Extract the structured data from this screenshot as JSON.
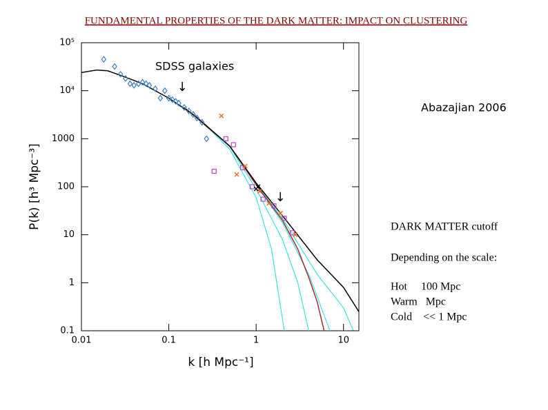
{
  "chart_data": {
    "type": "scatter",
    "title": "FUNDAMENTAL PROPERTIES OF THE DARK MATTER: IMPACT ON CLUSTERING",
    "x_label": "k [h Mpc⁻¹]",
    "y_label": "P(k) [h³ Mpc⁻³]",
    "x_log": true,
    "y_log": true,
    "xlim": [
      0.01,
      15
    ],
    "ylim": [
      0.1,
      100000
    ],
    "xticks": [
      0.01,
      0.1,
      1,
      10
    ],
    "yticks": [
      0.1,
      1,
      10,
      100,
      1000,
      {
        "value": 10000,
        "label": "10⁴"
      },
      {
        "value": 100000,
        "label": "10⁵"
      }
    ],
    "annotations": [
      "SDSS galaxies",
      "Abazajian 2006",
      "DARK MATTER cutoff",
      "Depending on the scale:",
      "Hot     100 Mpc",
      "Warm   Mpc",
      "Cold    << 1 Mpc"
    ],
    "series": [
      {
        "mode": "line",
        "color": "#40e0e0",
        "x": [
          0.15,
          0.3,
          0.5,
          1,
          1.5,
          2.1
        ],
        "values": [
          4500,
          1500,
          600,
          60,
          5,
          0.1
        ]
      },
      {
        "mode": "line",
        "color": "#40e0e0",
        "x": [
          0.15,
          0.5,
          1,
          2,
          3,
          4
        ],
        "values": [
          4500,
          680,
          90,
          8,
          1,
          0.1
        ]
      },
      {
        "mode": "line",
        "color": "#40e0e0",
        "x": [
          0.15,
          0.5,
          1,
          2,
          4,
          7
        ],
        "values": [
          4500,
          700,
          110,
          18,
          1.5,
          0.1
        ]
      },
      {
        "mode": "line",
        "color": "#40e0e0",
        "x": [
          0.15,
          0.5,
          1,
          2,
          5,
          10,
          13
        ],
        "values": [
          4500,
          700,
          115,
          22,
          1.5,
          0.3,
          0.1
        ]
      },
      {
        "mode": "line",
        "color": "#a03030",
        "x": [
          0.15,
          0.5,
          1,
          2,
          3,
          4,
          5,
          6
        ],
        "values": [
          4500,
          700,
          110,
          20,
          5,
          1.3,
          0.4,
          0.1
        ]
      },
      {
        "mode": "line",
        "color": "#000000",
        "x": [
          0.01,
          0.015,
          0.02,
          0.03,
          0.05,
          0.1,
          0.2,
          0.5,
          1,
          2,
          5,
          10,
          15
        ],
        "values": [
          24000,
          27000,
          26000,
          20000,
          14000,
          7000,
          3000,
          700,
          120,
          25,
          3,
          0.8,
          0.25
        ]
      },
      {
        "mode": "markers",
        "marker": "diamond",
        "color": "#3a7fc0",
        "x": [
          0.018,
          0.024,
          0.028,
          0.032,
          0.036,
          0.04,
          0.045,
          0.05,
          0.055,
          0.06,
          0.07,
          0.08,
          0.09,
          0.1,
          0.11,
          0.12,
          0.13,
          0.15,
          0.17,
          0.19,
          0.21,
          0.24,
          0.27
        ],
        "values": [
          45000,
          32000,
          22000,
          18000,
          14000,
          13000,
          14000,
          15000,
          14000,
          13000,
          11000,
          7000,
          10000,
          7000,
          6500,
          6000,
          5500,
          4500,
          3800,
          3200,
          2700,
          2200,
          1000
        ]
      },
      {
        "mode": "markers",
        "marker": "square",
        "color": "#c040c0",
        "x": [
          0.33,
          0.45,
          0.55,
          0.7,
          0.9,
          1.2,
          1.6,
          2.1,
          2.6
        ],
        "values": [
          210,
          1000,
          750,
          250,
          100,
          55,
          40,
          22,
          11
        ]
      },
      {
        "mode": "markers",
        "marker": "cross",
        "color": "#e07020",
        "x": [
          0.4,
          0.6,
          0.75,
          1.1,
          1.4,
          1.9,
          2.8
        ],
        "values": [
          3000,
          180,
          270,
          80,
          45,
          28,
          10
        ]
      },
      {
        "mode": "markers",
        "marker": "cross",
        "color": "#000000",
        "x": [
          1.0,
          1.05
        ],
        "values": [
          90,
          100
        ]
      }
    ]
  }
}
